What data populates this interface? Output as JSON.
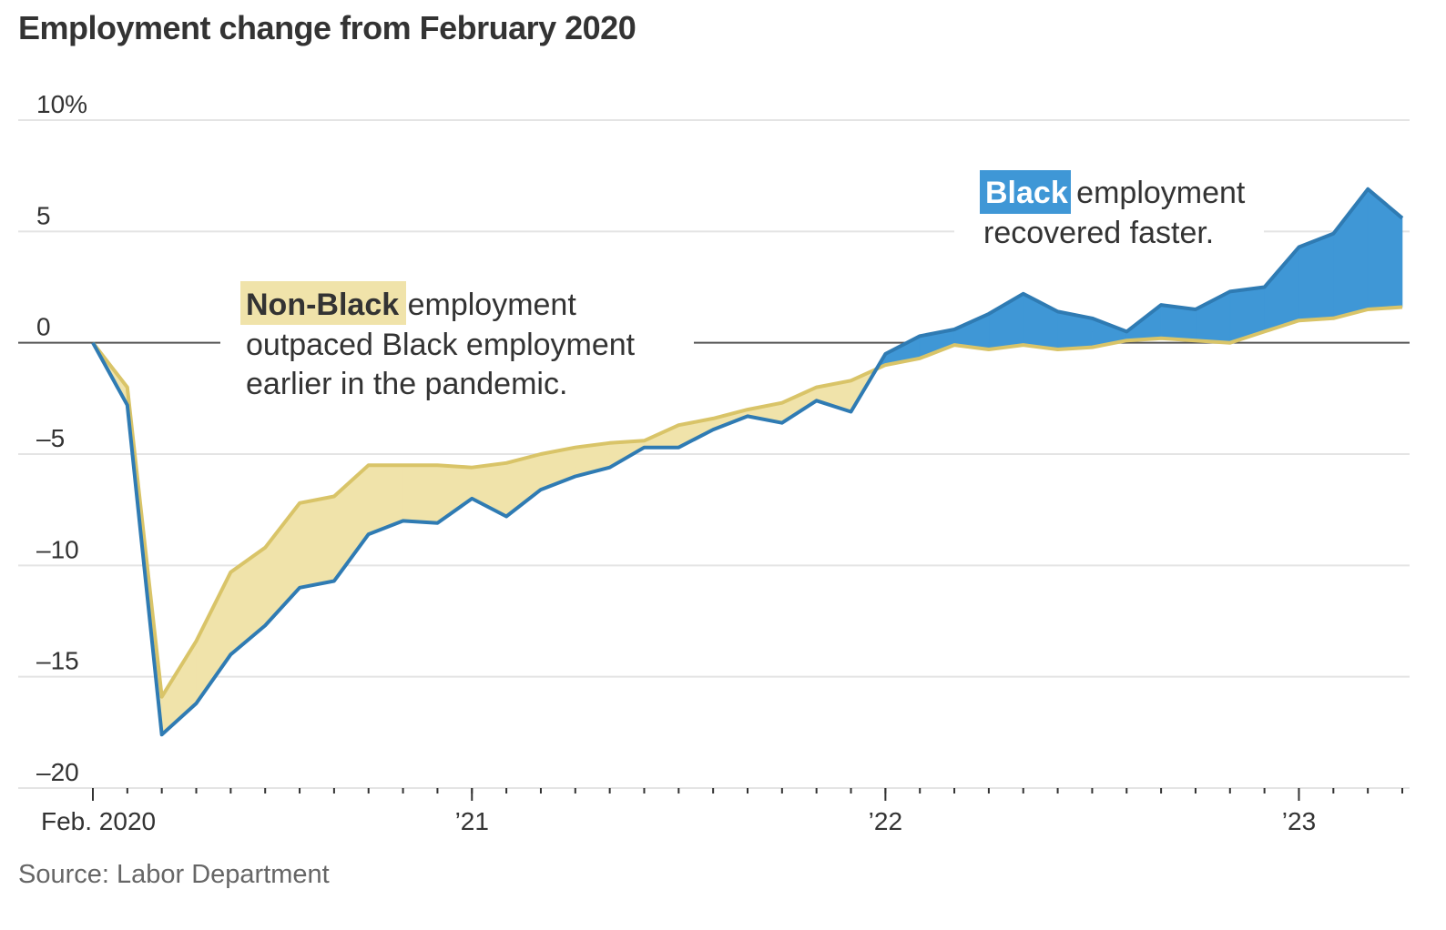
{
  "title": "Employment change from February 2020",
  "source": "Source: Labor Department",
  "colors": {
    "black_fill": "#3f97d6",
    "black_line": "#2f7bb3",
    "nonblack_fill": "#f0e3aa",
    "nonblack_line": "#d9c468",
    "grid": "#e4e4e4",
    "zero": "#555555"
  },
  "annotations": {
    "nonblack": {
      "highlight": "Non-Black",
      "line1_rest": " employment",
      "line2": "outpaced Black employment",
      "line3": "earlier in the pandemic."
    },
    "black": {
      "highlight": "Black",
      "line1_rest": " employment",
      "line2": "recovered faster."
    }
  },
  "chart_data": {
    "type": "area",
    "title": "Employment change from February 2020",
    "xlabel": "",
    "ylabel": "",
    "ylim": [
      -20,
      10
    ],
    "yticks": [
      {
        "value": 10,
        "label": "10%"
      },
      {
        "value": 5,
        "label": "5"
      },
      {
        "value": 0,
        "label": "0"
      },
      {
        "value": -5,
        "label": "–5"
      },
      {
        "value": -10,
        "label": "–10"
      },
      {
        "value": -15,
        "label": "–15"
      },
      {
        "value": -20,
        "label": "–20"
      }
    ],
    "x_start": "2020-02",
    "x_end": "2023-04",
    "xticks": [
      {
        "date": "2020-02",
        "label": "Feb. 2020"
      },
      {
        "date": "2021-01",
        "label": "’21"
      },
      {
        "date": "2022-01",
        "label": "’22"
      },
      {
        "date": "2023-01",
        "label": "’23"
      }
    ],
    "grid": true,
    "x": [
      "2020-02",
      "2020-03",
      "2020-04",
      "2020-05",
      "2020-06",
      "2020-07",
      "2020-08",
      "2020-09",
      "2020-10",
      "2020-11",
      "2020-12",
      "2021-01",
      "2021-02",
      "2021-03",
      "2021-04",
      "2021-05",
      "2021-06",
      "2021-07",
      "2021-08",
      "2021-09",
      "2021-10",
      "2021-11",
      "2021-12",
      "2022-01",
      "2022-02",
      "2022-03",
      "2022-04",
      "2022-05",
      "2022-06",
      "2022-07",
      "2022-08",
      "2022-09",
      "2022-10",
      "2022-11",
      "2022-12",
      "2023-01",
      "2023-02",
      "2023-03",
      "2023-04"
    ],
    "series": [
      {
        "name": "Black",
        "values": [
          0,
          -2.8,
          -17.6,
          -16.2,
          -14.0,
          -12.7,
          -11.0,
          -10.7,
          -8.6,
          -8.0,
          -8.1,
          -7.0,
          -7.8,
          -6.6,
          -6.0,
          -5.6,
          -4.7,
          -4.7,
          -3.9,
          -3.3,
          -3.6,
          -2.6,
          -3.1,
          -0.5,
          0.3,
          0.6,
          1.3,
          2.2,
          1.4,
          1.1,
          0.5,
          1.7,
          1.5,
          2.3,
          2.5,
          4.3,
          4.9,
          6.9,
          5.6
        ]
      },
      {
        "name": "Non-Black",
        "values": [
          0,
          -2.0,
          -15.9,
          -13.4,
          -10.3,
          -9.2,
          -7.2,
          -6.9,
          -5.5,
          -5.5,
          -5.5,
          -5.6,
          -5.4,
          -5.0,
          -4.7,
          -4.5,
          -4.4,
          -3.7,
          -3.4,
          -3.0,
          -2.7,
          -2.0,
          -1.7,
          -1.0,
          -0.7,
          -0.1,
          -0.3,
          -0.1,
          -0.3,
          -0.2,
          0.1,
          0.2,
          0.1,
          0.0,
          0.5,
          1.0,
          1.1,
          1.5,
          1.6
        ]
      }
    ]
  }
}
